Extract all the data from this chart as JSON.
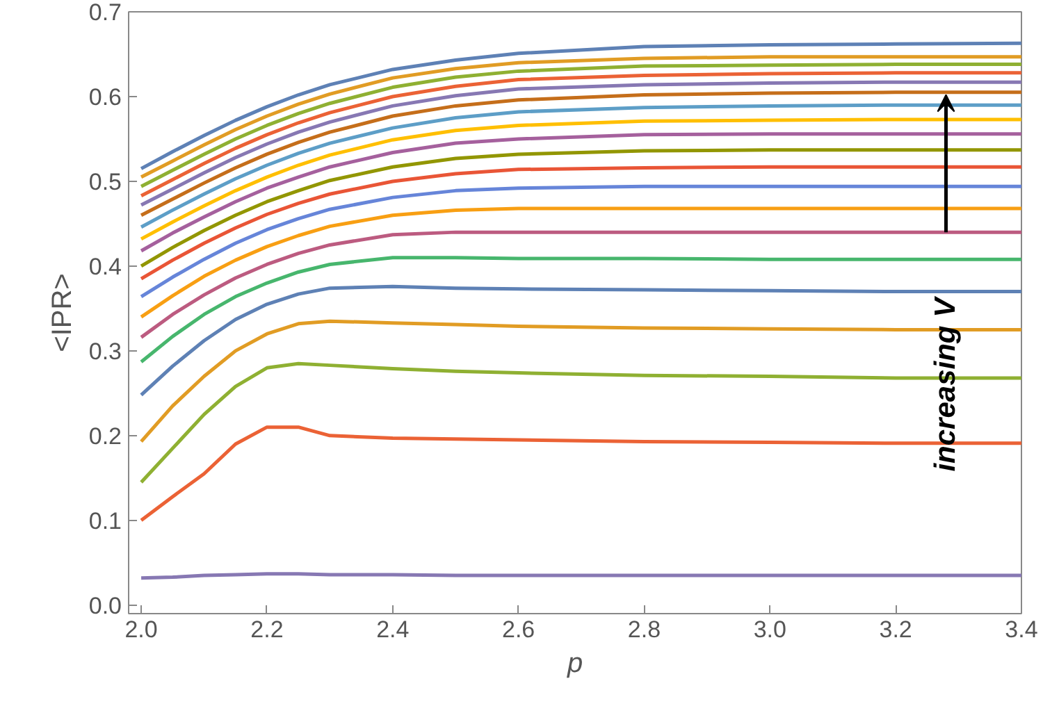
{
  "chart_data": {
    "type": "line",
    "xlabel": "p",
    "ylabel": "<IPR>",
    "x": [
      2.0,
      2.05,
      2.1,
      2.15,
      2.2,
      2.25,
      2.3,
      2.4,
      2.5,
      2.6,
      2.8,
      3.0,
      3.2,
      3.4
    ],
    "xlim": [
      1.98,
      3.4
    ],
    "ylim": [
      -0.01,
      0.7
    ],
    "xticks": [
      {
        "value": 2.0,
        "label": "2.0"
      },
      {
        "value": 2.2,
        "label": "2.2"
      },
      {
        "value": 2.4,
        "label": "2.4"
      },
      {
        "value": 2.6,
        "label": "2.6"
      },
      {
        "value": 2.8,
        "label": "2.8"
      },
      {
        "value": 3.0,
        "label": "3.0"
      },
      {
        "value": 3.2,
        "label": "3.2"
      },
      {
        "value": 3.4,
        "label": "3.4"
      }
    ],
    "yticks": [
      {
        "value": 0.0,
        "label": "0.0"
      },
      {
        "value": 0.1,
        "label": "0.1"
      },
      {
        "value": 0.2,
        "label": "0.2"
      },
      {
        "value": 0.3,
        "label": "0.3"
      },
      {
        "value": 0.4,
        "label": "0.4"
      },
      {
        "value": 0.5,
        "label": "0.5"
      },
      {
        "value": 0.6,
        "label": "0.6"
      },
      {
        "value": 0.7,
        "label": "0.7"
      }
    ],
    "grid": false,
    "marker": "none",
    "line_style": "solid",
    "annotations": [
      "increasing V"
    ],
    "series": [
      {
        "color": "#5e81b5",
        "values": [
          0.515,
          0.535,
          0.554,
          0.572,
          0.588,
          0.602,
          0.614,
          0.632,
          0.643,
          0.651,
          0.659,
          0.661,
          0.662,
          0.663
        ]
      },
      {
        "color": "#e19c24",
        "values": [
          0.505,
          0.524,
          0.543,
          0.561,
          0.577,
          0.591,
          0.603,
          0.622,
          0.633,
          0.64,
          0.645,
          0.647,
          0.647,
          0.647
        ]
      },
      {
        "color": "#8fb032",
        "values": [
          0.494,
          0.513,
          0.532,
          0.55,
          0.566,
          0.58,
          0.592,
          0.611,
          0.623,
          0.63,
          0.636,
          0.637,
          0.638,
          0.638
        ]
      },
      {
        "color": "#eb6235",
        "values": [
          0.483,
          0.502,
          0.521,
          0.539,
          0.555,
          0.569,
          0.581,
          0.6,
          0.612,
          0.62,
          0.625,
          0.627,
          0.628,
          0.628
        ]
      },
      {
        "color": "#8778b3",
        "values": [
          0.472,
          0.491,
          0.51,
          0.528,
          0.544,
          0.558,
          0.57,
          0.589,
          0.601,
          0.609,
          0.614,
          0.616,
          0.617,
          0.617
        ]
      },
      {
        "color": "#c56e1a",
        "values": [
          0.46,
          0.479,
          0.498,
          0.516,
          0.532,
          0.546,
          0.558,
          0.577,
          0.589,
          0.596,
          0.602,
          0.604,
          0.605,
          0.605
        ]
      },
      {
        "color": "#5d9ec7",
        "values": [
          0.446,
          0.466,
          0.485,
          0.503,
          0.519,
          0.533,
          0.545,
          0.563,
          0.575,
          0.582,
          0.587,
          0.589,
          0.59,
          0.59
        ]
      },
      {
        "color": "#ffbf00",
        "values": [
          0.432,
          0.452,
          0.471,
          0.489,
          0.505,
          0.519,
          0.531,
          0.549,
          0.56,
          0.566,
          0.571,
          0.572,
          0.573,
          0.573
        ]
      },
      {
        "color": "#a5609d",
        "values": [
          0.418,
          0.439,
          0.458,
          0.476,
          0.492,
          0.505,
          0.517,
          0.534,
          0.545,
          0.55,
          0.555,
          0.556,
          0.556,
          0.556
        ]
      },
      {
        "color": "#929600",
        "values": [
          0.4,
          0.422,
          0.442,
          0.46,
          0.476,
          0.489,
          0.501,
          0.517,
          0.527,
          0.532,
          0.536,
          0.537,
          0.537,
          0.537
        ]
      },
      {
        "color": "#e95536",
        "values": [
          0.385,
          0.407,
          0.427,
          0.445,
          0.461,
          0.474,
          0.485,
          0.5,
          0.509,
          0.514,
          0.516,
          0.517,
          0.517,
          0.517
        ]
      },
      {
        "color": "#6685d9",
        "values": [
          0.364,
          0.387,
          0.408,
          0.427,
          0.443,
          0.456,
          0.467,
          0.481,
          0.489,
          0.492,
          0.494,
          0.494,
          0.494,
          0.494
        ]
      },
      {
        "color": "#f89f13",
        "values": [
          0.34,
          0.365,
          0.388,
          0.407,
          0.423,
          0.436,
          0.447,
          0.46,
          0.466,
          0.468,
          0.468,
          0.468,
          0.468,
          0.468
        ]
      },
      {
        "color": "#bc5b80",
        "values": [
          0.316,
          0.343,
          0.366,
          0.386,
          0.402,
          0.415,
          0.425,
          0.437,
          0.44,
          0.44,
          0.44,
          0.44,
          0.44,
          0.44
        ]
      },
      {
        "color": "#47b66d",
        "values": [
          0.287,
          0.317,
          0.343,
          0.364,
          0.38,
          0.393,
          0.402,
          0.41,
          0.41,
          0.409,
          0.409,
          0.408,
          0.408,
          0.408
        ]
      },
      {
        "color": "#5e81b5",
        "values": [
          0.248,
          0.282,
          0.312,
          0.337,
          0.355,
          0.367,
          0.374,
          0.376,
          0.374,
          0.373,
          0.372,
          0.371,
          0.37,
          0.37
        ]
      },
      {
        "color": "#e19c24",
        "values": [
          0.193,
          0.235,
          0.27,
          0.3,
          0.32,
          0.332,
          0.335,
          0.333,
          0.331,
          0.329,
          0.327,
          0.326,
          0.325,
          0.325
        ]
      },
      {
        "color": "#8fb032",
        "values": [
          0.145,
          0.185,
          0.225,
          0.258,
          0.28,
          0.285,
          0.283,
          0.279,
          0.276,
          0.274,
          0.271,
          0.27,
          0.268,
          0.268
        ]
      },
      {
        "color": "#eb6235",
        "values": [
          0.1,
          0.128,
          0.155,
          0.19,
          0.21,
          0.21,
          0.2,
          0.197,
          0.196,
          0.195,
          0.193,
          0.192,
          0.191,
          0.191
        ]
      },
      {
        "color": "#8778b3",
        "values": [
          0.032,
          0.033,
          0.035,
          0.036,
          0.037,
          0.037,
          0.036,
          0.036,
          0.035,
          0.035,
          0.035,
          0.035,
          0.035,
          0.035
        ]
      }
    ]
  }
}
